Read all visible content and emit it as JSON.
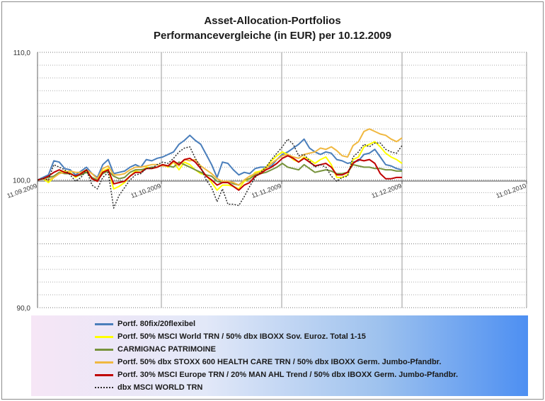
{
  "chart_data": {
    "type": "line",
    "title": "Asset-Allocation-Portfolios",
    "subtitle": "Performancevergleiche (in EUR) per 10.12.2009",
    "xlabel": "",
    "ylabel": "",
    "ylim": [
      90,
      110
    ],
    "y_ticks": [
      "90,0",
      "100,0",
      "110,0"
    ],
    "x_ticks": [
      "11.09.2009",
      "11.10.2009",
      "11.11.2009",
      "11.12.2009",
      "11.01.2010"
    ],
    "grid": "horizontal-dotted",
    "legend_position": "bottom",
    "series": [
      {
        "name": "Portf. 80fix/20flexibel",
        "color": "#4a7ebb",
        "style": "solid",
        "values": [
          100.0,
          100.2,
          100.4,
          101.5,
          101.4,
          100.9,
          100.8,
          100.4,
          100.7,
          101.0,
          100.5,
          100.2,
          101.2,
          101.6,
          100.5,
          100.6,
          100.7,
          101.0,
          101.2,
          101.0,
          101.6,
          101.5,
          101.7,
          101.8,
          102.0,
          102.2,
          102.8,
          103.1,
          103.5,
          103.1,
          102.8,
          102.0,
          101.2,
          100.2,
          101.4,
          101.3,
          100.8,
          100.4,
          100.6,
          100.5,
          100.9,
          101.0,
          101.0,
          101.1,
          101.6,
          102.0,
          102.2,
          102.5,
          102.8,
          103.2,
          102.5,
          102.2,
          102.0,
          102.2,
          102.1,
          101.6,
          101.5,
          101.3,
          101.4,
          101.5,
          102.0,
          102.1,
          102.4,
          101.8,
          101.2,
          101.1,
          100.9,
          100.8
        ]
      },
      {
        "name": "Portf. 50% MSCI World TRN / 50% dbx IBOXX Sov. Euroz. Total 1-15",
        "color": "#ffff00",
        "style": "solid",
        "values": [
          100.0,
          100.1,
          99.8,
          100.2,
          100.6,
          100.7,
          100.6,
          100.2,
          100.5,
          100.7,
          100.1,
          99.9,
          100.7,
          100.9,
          99.3,
          99.5,
          99.8,
          100.3,
          100.7,
          100.6,
          101.0,
          100.9,
          101.0,
          101.2,
          101.0,
          101.4,
          100.8,
          101.4,
          101.2,
          100.8,
          100.5,
          100.4,
          99.8,
          99.2,
          99.6,
          99.6,
          99.5,
          99.3,
          99.9,
          100.1,
          100.6,
          100.7,
          101.0,
          101.5,
          101.9,
          102.2,
          102.0,
          101.6,
          101.4,
          101.8,
          101.6,
          101.3,
          101.6,
          101.8,
          101.2,
          100.2,
          100.2,
          100.4,
          101.6,
          101.8,
          102.6,
          102.8,
          103.0,
          102.6,
          102.1,
          101.8,
          101.6,
          101.3
        ]
      },
      {
        "name": "CARMIGNAC PATRIMOINE",
        "color": "#77933c",
        "style": "solid",
        "values": [
          100.0,
          100.1,
          100.2,
          100.3,
          100.6,
          100.5,
          100.5,
          100.3,
          100.4,
          100.6,
          100.2,
          100.0,
          100.5,
          100.7,
          100.3,
          100.1,
          100.2,
          100.6,
          100.8,
          100.8,
          100.9,
          101.0,
          101.0,
          101.2,
          101.1,
          101.0,
          101.4,
          101.2,
          101.0,
          100.8,
          100.6,
          100.4,
          100.3,
          99.9,
          99.8,
          99.9,
          99.7,
          99.6,
          100.0,
          100.1,
          100.4,
          100.5,
          100.6,
          100.8,
          101.0,
          101.3,
          101.0,
          100.9,
          100.8,
          101.2,
          100.9,
          100.6,
          100.7,
          100.8,
          100.7,
          100.5,
          100.5,
          100.6,
          101.2,
          101.1,
          101.0,
          101.0,
          100.9,
          100.9,
          100.8,
          100.8,
          100.7,
          100.7
        ]
      },
      {
        "name": "Portf. 50% dbx STOXX 600  HEALTH CARE TRN / 50% dbx IBOXX Germ. Jumbo-Pfandbr.",
        "color": "#f0b840",
        "style": "solid",
        "values": [
          100.0,
          100.1,
          100.0,
          100.2,
          100.5,
          100.6,
          100.7,
          100.6,
          100.6,
          100.8,
          100.5,
          100.1,
          100.9,
          101.1,
          100.4,
          100.4,
          100.5,
          100.8,
          101.0,
          101.0,
          101.1,
          101.2,
          101.2,
          101.1,
          101.1,
          101.4,
          101.1,
          101.6,
          101.5,
          101.6,
          101.1,
          100.8,
          100.5,
          100.1,
          99.9,
          99.9,
          99.8,
          99.6,
          100.0,
          100.3,
          100.5,
          100.6,
          100.9,
          101.3,
          101.6,
          101.9,
          102.0,
          101.8,
          101.7,
          102.0,
          102.1,
          102.2,
          102.5,
          102.4,
          102.6,
          102.3,
          101.9,
          101.8,
          102.7,
          103.0,
          103.8,
          104.0,
          103.8,
          103.6,
          103.5,
          103.2,
          103.0,
          103.3
        ]
      },
      {
        "name": "Portf. 30% MSCI Europe TRN / 20% MAN AHL Trend / 50% dbx IBOXX Germ. Jumbo-Pfandbr.",
        "color": "#c00000",
        "style": "solid",
        "values": [
          100.0,
          100.1,
          100.3,
          100.6,
          100.8,
          100.6,
          100.5,
          100.3,
          100.5,
          100.8,
          100.1,
          99.9,
          100.6,
          100.8,
          99.7,
          99.8,
          99.9,
          100.3,
          100.6,
          100.6,
          100.9,
          100.9,
          101.0,
          101.2,
          101.1,
          101.5,
          101.2,
          101.6,
          101.7,
          101.4,
          100.9,
          100.3,
          100.0,
          99.6,
          99.8,
          99.8,
          99.5,
          99.2,
          99.6,
          99.8,
          100.3,
          100.5,
          100.8,
          101.0,
          101.3,
          101.7,
          101.9,
          101.7,
          101.4,
          101.7,
          101.4,
          101.1,
          101.2,
          101.3,
          101.0,
          100.4,
          100.4,
          100.6,
          101.3,
          101.6,
          101.5,
          101.6,
          101.3,
          100.5,
          100.1,
          100.1,
          100.2,
          100.2
        ]
      },
      {
        "name": "dbx MSCI WORLD TRN",
        "color": "#2b2b2b",
        "style": "dotted",
        "values": [
          100.0,
          100.1,
          100.0,
          101.2,
          101.0,
          100.8,
          100.4,
          99.9,
          100.2,
          100.8,
          99.6,
          99.3,
          100.2,
          100.6,
          97.8,
          98.8,
          99.4,
          100.0,
          100.4,
          100.5,
          100.9,
          100.9,
          101.2,
          101.4,
          101.3,
          101.7,
          102.2,
          102.5,
          102.6,
          101.7,
          101.0,
          100.0,
          99.4,
          98.3,
          99.3,
          98.1,
          98.1,
          98.0,
          98.7,
          99.5,
          100.2,
          100.6,
          101.0,
          101.6,
          102.1,
          102.6,
          103.2,
          102.8,
          101.9,
          102.0,
          101.5,
          101.0,
          101.2,
          101.0,
          100.3,
          99.9,
          100.2,
          100.3,
          101.8,
          102.2,
          102.8,
          102.6,
          102.9,
          102.9,
          102.4,
          102.2,
          102.1,
          102.7
        ]
      }
    ]
  }
}
